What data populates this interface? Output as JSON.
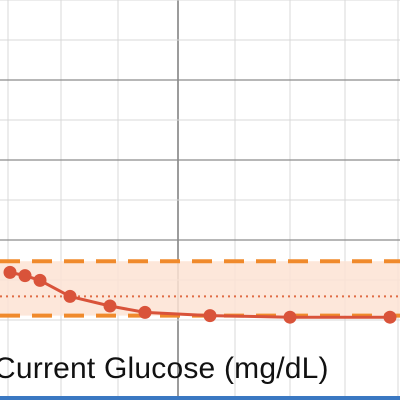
{
  "chart_data": {
    "type": "line",
    "title": "",
    "xlabel": "Current Glucose (mg/dL)",
    "ylabel": "",
    "series": [
      {
        "values": [
          {
            "x": 0.0,
            "y": 46
          },
          {
            "x": 0.3,
            "y": 44
          },
          {
            "x": 0.6,
            "y": 41
          },
          {
            "x": 1.2,
            "y": 31
          },
          {
            "x": 2.0,
            "y": 25
          },
          {
            "x": 2.7,
            "y": 21
          },
          {
            "x": 4.0,
            "y": 19
          },
          {
            "x": 5.6,
            "y": 18
          },
          {
            "x": 7.6,
            "y": 18
          }
        ]
      }
    ],
    "reference_band": {
      "low": 19,
      "high": 53,
      "target": 31
    },
    "colors": {
      "series": "#d9533a",
      "band_fill": "#fde3d4",
      "band_edge": "#f08a2c",
      "target_line": "#e06c45",
      "grid": "#d9d9d9",
      "axis": "#5a5a5a",
      "bottom_bar": "#3a78c2"
    },
    "grid": true
  }
}
